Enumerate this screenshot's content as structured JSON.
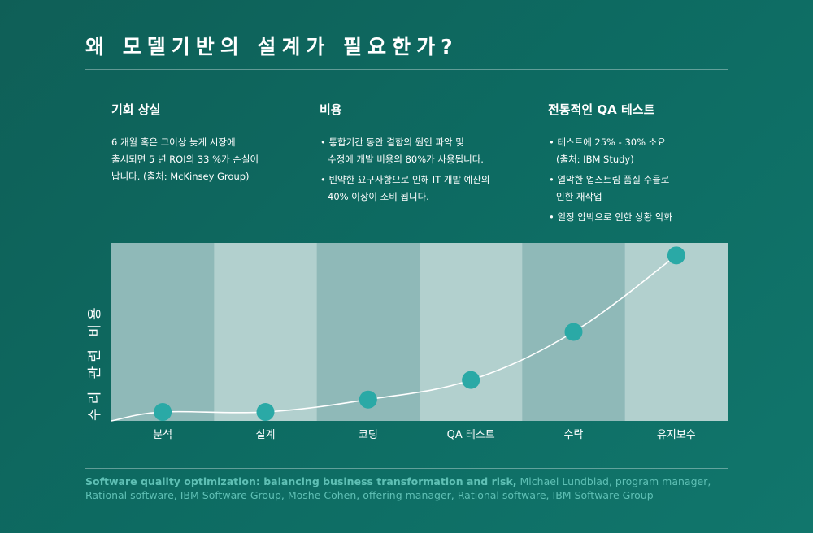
{
  "title": "왜 모델기반의 설계가 필요한가?",
  "columns": [
    {
      "heading": "기회 상실",
      "lines": [
        "6 개월 혹은 그이상 늦게 시장에",
        "출시되면 5 년 ROI의 33 %가 손실이",
        "납니다. (출처: McKinsey Group)"
      ]
    },
    {
      "heading": "비용",
      "bullets": [
        [
          "통합기간 동안 결함의 원인 파악 및",
          "수정에 개발 비용의 80%가 사용됩니다."
        ],
        [
          "빈약한 요구사항으로 인해 IT 개발 예산의",
          "40% 이상이 소비 됩니다."
        ]
      ]
    },
    {
      "heading": "전통적인 QA 테스트",
      "bullets": [
        [
          "테스트에 25% - 30% 소요",
          "(출처: IBM Study)"
        ],
        [
          "열악한 업스트림 품질 수율로",
          "인한  재작업"
        ],
        [
          "일정 압박으로 인한 상황 악화"
        ]
      ]
    }
  ],
  "chart_data": {
    "type": "line",
    "categories": [
      "분석",
      "설계",
      "코딩",
      "QA 테스트",
      "수락",
      "유지보수"
    ],
    "values": [
      5,
      5,
      12,
      23,
      50,
      93
    ],
    "ylabel": "수리 관련 비용",
    "ylim": [
      0,
      100
    ],
    "grid": false,
    "axis_ticks": false,
    "colors": {
      "point": "#2aa9a6",
      "line": "#ffffff",
      "band_dark": "#8fb9b8",
      "band_light": "#b2d0ce"
    }
  },
  "source": {
    "bold": "Software quality optimization: balancing business transformation and risk,",
    "rest": " Michael Lundblad, program manager, Rational software, IBM Software Group, Moshe Cohen, offering manager, Rational software, IBM Software Group"
  }
}
